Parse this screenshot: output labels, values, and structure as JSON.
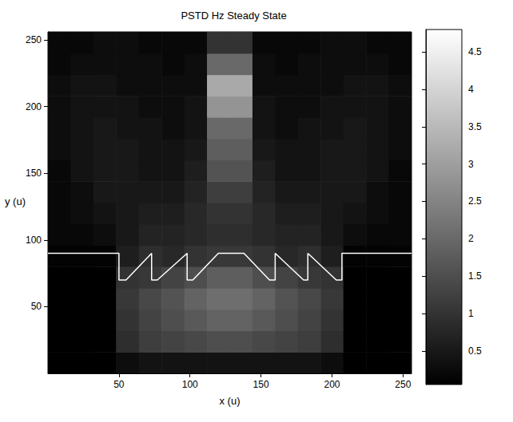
{
  "chart_data": {
    "type": "heatmap",
    "title": "PSTD Hz Steady State",
    "x_label": "x (u)",
    "y_label": "y (u)",
    "xlim": [
      0,
      256
    ],
    "ylim": [
      0,
      256
    ],
    "xticks": [
      50,
      100,
      150,
      200,
      250
    ],
    "yticks": [
      50,
      100,
      150,
      200,
      250
    ],
    "grid": false,
    "cells": {
      "x_edges": [
        0,
        16,
        32,
        48,
        64,
        80,
        96,
        112,
        128,
        144,
        160,
        176,
        192,
        208,
        224,
        240,
        256
      ],
      "y_edges": [
        0,
        16,
        32,
        48,
        64,
        80,
        96,
        112,
        128,
        144,
        160,
        176,
        192,
        208,
        224,
        240,
        256
      ],
      "values": [
        [
          0.05,
          0.05,
          0.05,
          0.3,
          0.4,
          0.4,
          0.4,
          0.4,
          0.4,
          0.4,
          0.4,
          0.4,
          0.3,
          0.05,
          0.05,
          0.05
        ],
        [
          0.05,
          0.05,
          0.05,
          0.9,
          1.2,
          1.3,
          1.4,
          1.5,
          1.5,
          1.4,
          1.3,
          1.2,
          0.9,
          0.05,
          0.05,
          0.05
        ],
        [
          0.05,
          0.05,
          0.05,
          1.0,
          1.3,
          1.5,
          1.7,
          1.9,
          1.9,
          1.7,
          1.5,
          1.3,
          1.0,
          0.05,
          0.05,
          0.05
        ],
        [
          0.05,
          0.05,
          0.05,
          1.1,
          1.4,
          1.6,
          1.9,
          2.1,
          2.1,
          1.9,
          1.6,
          1.4,
          1.1,
          0.05,
          0.05,
          0.05
        ],
        [
          0.05,
          0.05,
          0.05,
          1.0,
          1.1,
          1.3,
          1.5,
          1.8,
          1.8,
          1.5,
          1.3,
          1.1,
          1.0,
          0.05,
          0.05,
          0.05
        ],
        [
          0.1,
          0.1,
          0.1,
          0.6,
          0.9,
          0.8,
          1.0,
          1.1,
          1.1,
          1.0,
          0.8,
          0.9,
          0.6,
          0.1,
          0.1,
          0.1
        ],
        [
          0.2,
          0.2,
          0.3,
          0.5,
          0.7,
          0.7,
          0.8,
          0.9,
          0.9,
          0.8,
          0.7,
          0.7,
          0.5,
          0.3,
          0.2,
          0.2
        ],
        [
          0.2,
          0.3,
          0.4,
          0.5,
          0.6,
          0.6,
          0.8,
          1.0,
          1.0,
          0.8,
          0.6,
          0.6,
          0.5,
          0.4,
          0.3,
          0.2
        ],
        [
          0.2,
          0.3,
          0.5,
          0.5,
          0.5,
          0.5,
          0.7,
          1.2,
          1.2,
          0.7,
          0.5,
          0.5,
          0.5,
          0.5,
          0.3,
          0.2
        ],
        [
          0.2,
          0.4,
          0.5,
          0.5,
          0.4,
          0.4,
          0.6,
          1.6,
          1.6,
          0.6,
          0.4,
          0.4,
          0.5,
          0.5,
          0.4,
          0.2
        ],
        [
          0.3,
          0.4,
          0.5,
          0.5,
          0.4,
          0.4,
          0.5,
          1.8,
          1.8,
          0.5,
          0.4,
          0.4,
          0.5,
          0.5,
          0.4,
          0.3
        ],
        [
          0.3,
          0.4,
          0.5,
          0.4,
          0.4,
          0.3,
          0.4,
          2.0,
          2.0,
          0.4,
          0.3,
          0.4,
          0.4,
          0.5,
          0.4,
          0.3
        ],
        [
          0.3,
          0.4,
          0.4,
          0.4,
          0.3,
          0.3,
          0.4,
          2.8,
          2.8,
          0.4,
          0.3,
          0.3,
          0.4,
          0.4,
          0.4,
          0.3
        ],
        [
          0.3,
          0.4,
          0.4,
          0.3,
          0.3,
          0.3,
          0.3,
          3.2,
          3.2,
          0.3,
          0.3,
          0.3,
          0.3,
          0.4,
          0.4,
          0.3
        ],
        [
          0.2,
          0.3,
          0.3,
          0.3,
          0.3,
          0.2,
          0.3,
          2.0,
          2.0,
          0.3,
          0.2,
          0.3,
          0.3,
          0.3,
          0.3,
          0.2
        ],
        [
          0.2,
          0.2,
          0.3,
          0.3,
          0.2,
          0.2,
          0.2,
          1.0,
          1.0,
          0.2,
          0.2,
          0.2,
          0.3,
          0.3,
          0.2,
          0.2
        ]
      ]
    },
    "colorbar": {
      "range": [
        0.05,
        4.8
      ],
      "ticks": [
        0.5,
        1,
        1.5,
        2,
        2.5,
        3,
        3.5,
        4,
        4.5
      ],
      "colors": [
        "#000000",
        "#ffffff"
      ]
    },
    "outline": {
      "type": "line",
      "color": "#ffffff",
      "x": [
        0,
        50,
        50,
        55,
        73,
        73,
        77,
        98,
        98,
        102,
        120,
        138,
        156,
        160,
        160,
        180,
        183,
        183,
        203,
        207,
        207,
        256
      ],
      "y": [
        90,
        90,
        70,
        70,
        90,
        70,
        70,
        90,
        70,
        70,
        90,
        90,
        70,
        70,
        90,
        70,
        70,
        90,
        70,
        70,
        90,
        90
      ]
    }
  }
}
